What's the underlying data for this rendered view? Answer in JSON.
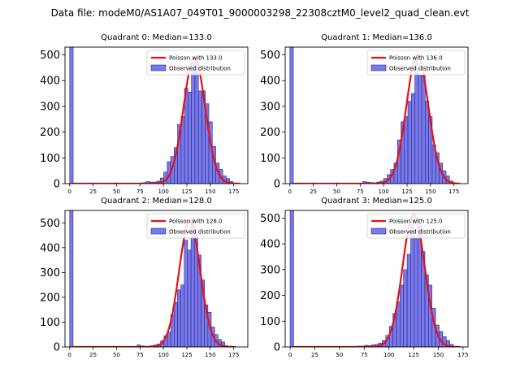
{
  "figure": {
    "suptitle": "Data file: modeM0/AS1A07_049T01_9000003298_22308cztM0_level2_quad_clean.evt"
  },
  "chart_data": [
    {
      "type": "bar",
      "title": "Quadrant 0: Median=133.0",
      "median": 133.0,
      "xlim": [
        -5,
        190
      ],
      "ylim": [
        0,
        530
      ],
      "xticks": [
        0,
        25,
        50,
        75,
        100,
        125,
        150,
        175
      ],
      "yticks": [
        0,
        100,
        200,
        300,
        400,
        500
      ],
      "bin_width": 3.7,
      "bin_starts": [
        0,
        74.4,
        78.1,
        81.8,
        85.5,
        89.2,
        92.9,
        96.6,
        100.3,
        104,
        107.7,
        111.4,
        115.1,
        118.8,
        122.5,
        126.2,
        129.9,
        133.6,
        137.3,
        141,
        144.7,
        148.4,
        152.1,
        155.8,
        159.5,
        163.2,
        166.9,
        170.6
      ],
      "counts": [
        530,
        2,
        4,
        8,
        6,
        6,
        10,
        22,
        45,
        85,
        105,
        140,
        230,
        260,
        370,
        355,
        470,
        480,
        360,
        360,
        310,
        240,
        145,
        80,
        55,
        30,
        20,
        8
      ],
      "curve_peak": 490,
      "legend": {
        "line": "Poisson with 133.0",
        "bar": "Observed distribution"
      },
      "colors": {
        "bar": "#6a6ae8",
        "edge": "#26268c",
        "line": "#e81010"
      }
    },
    {
      "type": "bar",
      "title": "Quadrant 1: Median=136.0",
      "median": 136.0,
      "xlim": [
        -5,
        190
      ],
      "ylim": [
        0,
        530
      ],
      "xticks": [
        0,
        25,
        50,
        75,
        100,
        125,
        150,
        175
      ],
      "yticks": [
        0,
        100,
        200,
        300,
        400,
        500
      ],
      "bin_width": 3.7,
      "bin_starts": [
        0,
        77.8,
        81.5,
        85.2,
        88.9,
        92.6,
        96.3,
        100,
        103.7,
        107.4,
        111.1,
        114.8,
        118.5,
        122.2,
        125.9,
        129.6,
        133.3,
        137,
        140.7,
        144.4,
        148.1,
        151.8,
        155.5,
        159.2,
        162.9,
        166.6,
        170.3
      ],
      "counts": [
        530,
        8,
        6,
        4,
        3,
        6,
        10,
        20,
        35,
        55,
        80,
        170,
        240,
        260,
        320,
        350,
        480,
        420,
        420,
        320,
        260,
        150,
        120,
        80,
        50,
        30,
        10
      ],
      "curve_peak": 500,
      "legend": {
        "line": "Poisson with 136.0",
        "bar": "Observed distribution"
      },
      "colors": {
        "bar": "#6a6ae8",
        "edge": "#26268c",
        "line": "#e81010"
      }
    },
    {
      "type": "bar",
      "title": "Quadrant 2: Median=128.0",
      "median": 128.0,
      "xlim": [
        -5,
        190
      ],
      "ylim": [
        0,
        550
      ],
      "xticks": [
        0,
        25,
        50,
        75,
        100,
        125,
        150,
        175
      ],
      "yticks": [
        0,
        100,
        200,
        300,
        400,
        500
      ],
      "bin_width": 3.6,
      "bin_starts": [
        0,
        71.8,
        75.4,
        79,
        82.6,
        86.2,
        89.8,
        93.4,
        97,
        100.6,
        104.2,
        107.8,
        111.4,
        115,
        118.6,
        122.2,
        125.8,
        129.4,
        133,
        136.6,
        140.2,
        143.8,
        147.4,
        151,
        154.6,
        158.2,
        161.8,
        165.4
      ],
      "counts": [
        550,
        8,
        4,
        3,
        2,
        5,
        8,
        12,
        25,
        45,
        60,
        130,
        180,
        230,
        250,
        430,
        390,
        520,
        450,
        370,
        270,
        170,
        140,
        80,
        50,
        30,
        20,
        5
      ],
      "curve_peak": 505,
      "legend": {
        "line": "Poisson with 128.0",
        "bar": "Observed distribution"
      },
      "colors": {
        "bar": "#6a6ae8",
        "edge": "#26268c",
        "line": "#e81010"
      }
    },
    {
      "type": "bar",
      "title": "Quadrant 3: Median=125.0",
      "median": 125.0,
      "xlim": [
        -5,
        180
      ],
      "ylim": [
        0,
        530
      ],
      "xticks": [
        0,
        25,
        50,
        75,
        100,
        125,
        150,
        175
      ],
      "yticks": [
        0,
        100,
        200,
        300,
        400,
        500
      ],
      "bin_width": 3.6,
      "bin_starts": [
        0,
        64.4,
        68,
        71.6,
        75.2,
        78.8,
        82.4,
        86,
        89.6,
        93.2,
        96.8,
        100.4,
        104,
        107.6,
        111.2,
        114.8,
        118.4,
        122,
        125.6,
        129.2,
        132.8,
        136.4,
        140,
        143.6,
        147.2,
        150.8,
        154.4,
        158,
        161.6
      ],
      "counts": [
        530,
        2,
        3,
        3,
        6,
        5,
        8,
        10,
        15,
        25,
        45,
        80,
        130,
        175,
        240,
        300,
        360,
        500,
        420,
        470,
        370,
        280,
        240,
        150,
        85,
        60,
        40,
        25,
        10
      ],
      "curve_peak": 515,
      "legend": {
        "line": "Poisson with 125.0",
        "bar": "Observed distribution"
      },
      "colors": {
        "bar": "#6a6ae8",
        "edge": "#26268c",
        "line": "#e81010"
      }
    }
  ]
}
